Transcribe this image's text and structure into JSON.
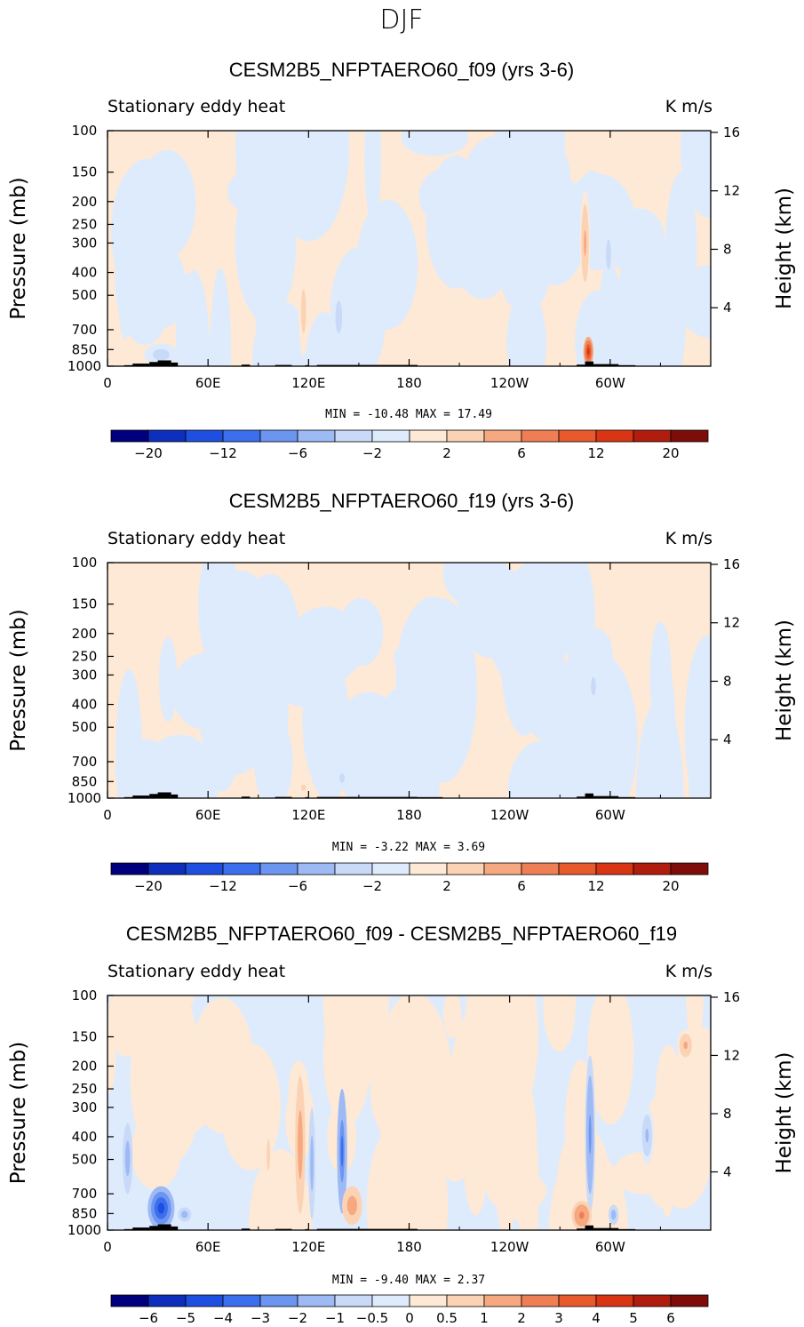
{
  "figure": {
    "season": "DJF",
    "ylabel_left": "Pressure (mb)",
    "ylabel_right": "Height (km)",
    "variable_label": "Stationary eddy heat",
    "units_label": "K m/s"
  },
  "chart_data": [
    {
      "type": "heatmap",
      "title": "CESM2B5_NFPTAERO60_f09 (yrs 3-6)",
      "subtitle_left": "Stationary eddy heat",
      "subtitle_right": "K m/s",
      "xlabel": "",
      "ylabel": "Pressure (mb)",
      "ylabel_right": "Height (km)",
      "x_ticks": [
        "0",
        "60E",
        "120E",
        "180",
        "120W",
        "60W"
      ],
      "x_tick_values": [
        0,
        60,
        120,
        180,
        240,
        300
      ],
      "xlim": [
        0,
        360
      ],
      "y_ticks": [
        "100",
        "150",
        "200",
        "250",
        "300",
        "400",
        "500",
        "700",
        "850",
        "1000"
      ],
      "y_tick_values": [
        100,
        150,
        200,
        250,
        300,
        400,
        500,
        700,
        850,
        1000
      ],
      "ylim": [
        1000,
        100
      ],
      "y_right_ticks": [
        "16",
        "12",
        "8",
        "4"
      ],
      "y_right_tick_values": [
        16,
        12,
        8,
        4
      ],
      "stats_text": "MIN =  -10.48   MAX =   17.49",
      "min": -10.48,
      "max": 17.49,
      "contour_levels": [
        -20,
        -16,
        -12,
        -8,
        -6,
        -4,
        -2,
        0,
        2,
        4,
        6,
        8,
        12,
        16,
        20
      ],
      "colorbar_labels": [
        "-20",
        "-12",
        "-6",
        "-2",
        "2",
        "6",
        "12",
        "20"
      ],
      "colorbar_label_values": [
        -20,
        -12,
        -6,
        -2,
        2,
        6,
        12,
        20
      ],
      "background_mix": "positive-small",
      "features": [
        {
          "lon": 95,
          "p": 500,
          "lon_width": 8,
          "p_span": [
            150,
            1000
          ],
          "value": -1
        },
        {
          "lon": 117,
          "p": 600,
          "lon_width": 3,
          "p_span": [
            380,
            900
          ],
          "value": 3
        },
        {
          "lon": 138,
          "p": 650,
          "lon_width": 4,
          "p_span": [
            450,
            850
          ],
          "value": -3
        },
        {
          "lon": 32,
          "p": 880,
          "lon_width": 10,
          "p_span": [
            800,
            1000
          ],
          "value": -3
        },
        {
          "lon": 285,
          "p": 350,
          "lon_width": 3,
          "p_span": [
            180,
            500
          ],
          "value": 4
        },
        {
          "lon": 287,
          "p": 900,
          "lon_width": 3,
          "p_span": [
            750,
            1000
          ],
          "value": 12
        },
        {
          "lon": 299,
          "p": 350,
          "lon_width": 3,
          "p_span": [
            250,
            450
          ],
          "value": -3
        }
      ]
    },
    {
      "type": "heatmap",
      "title": "CESM2B5_NFPTAERO60_f19 (yrs 3-6)",
      "subtitle_left": "Stationary eddy heat",
      "subtitle_right": "K m/s",
      "xlabel": "",
      "ylabel": "Pressure (mb)",
      "ylabel_right": "Height (km)",
      "x_ticks": [
        "0",
        "60E",
        "120E",
        "180",
        "120W",
        "60W"
      ],
      "x_tick_values": [
        0,
        60,
        120,
        180,
        240,
        300
      ],
      "xlim": [
        0,
        360
      ],
      "y_ticks": [
        "100",
        "150",
        "200",
        "250",
        "300",
        "400",
        "500",
        "700",
        "850",
        "1000"
      ],
      "y_tick_values": [
        100,
        150,
        200,
        250,
        300,
        400,
        500,
        700,
        850,
        1000
      ],
      "ylim": [
        1000,
        100
      ],
      "y_right_ticks": [
        "16",
        "12",
        "8",
        "4"
      ],
      "y_right_tick_values": [
        16,
        12,
        8,
        4
      ],
      "stats_text": "MIN =   -3.22   MAX =    3.69",
      "min": -3.22,
      "max": 3.69,
      "contour_levels": [
        -20,
        -16,
        -12,
        -8,
        -6,
        -4,
        -2,
        0,
        2,
        4,
        6,
        8,
        12,
        16,
        20
      ],
      "colorbar_labels": [
        "-20",
        "-12",
        "-6",
        "-2",
        "2",
        "6",
        "12",
        "20"
      ],
      "colorbar_label_values": [
        -20,
        -12,
        -6,
        -2,
        2,
        6,
        12,
        20
      ],
      "background_mix": "positive-small",
      "features": [
        {
          "lon": 140,
          "p": 820,
          "lon_width": 3,
          "p_span": [
            750,
            900
          ],
          "value": -3
        },
        {
          "lon": 117,
          "p": 900,
          "lon_width": 3,
          "p_span": [
            850,
            960
          ],
          "value": 3
        },
        {
          "lon": 290,
          "p": 330,
          "lon_width": 3,
          "p_span": [
            280,
            400
          ],
          "value": -3
        }
      ]
    },
    {
      "type": "heatmap",
      "title": "CESM2B5_NFPTAERO60_f09 - CESM2B5_NFPTAERO60_f19",
      "subtitle_left": "Stationary eddy heat",
      "subtitle_right": "K m/s",
      "xlabel": "",
      "ylabel": "Pressure (mb)",
      "ylabel_right": "Height (km)",
      "x_ticks": [
        "0",
        "60E",
        "120E",
        "180",
        "120W",
        "60W"
      ],
      "x_tick_values": [
        0,
        60,
        120,
        180,
        240,
        300
      ],
      "xlim": [
        0,
        360
      ],
      "y_ticks": [
        "100",
        "150",
        "200",
        "250",
        "300",
        "400",
        "500",
        "700",
        "850",
        "1000"
      ],
      "y_tick_values": [
        100,
        150,
        200,
        250,
        300,
        400,
        500,
        700,
        850,
        1000
      ],
      "ylim": [
        1000,
        100
      ],
      "y_right_ticks": [
        "16",
        "12",
        "8",
        "4"
      ],
      "y_right_tick_values": [
        16,
        12,
        8,
        4
      ],
      "stats_text": "MIN =   -9.40   MAX =    2.37",
      "min": -9.4,
      "max": 2.37,
      "contour_levels": [
        -6,
        -5,
        -4,
        -3,
        -2,
        -1,
        -0.5,
        0,
        0.5,
        1,
        2,
        3,
        4,
        5,
        6
      ],
      "colorbar_labels": [
        "-6",
        "-5",
        "-4",
        "-3",
        "-2",
        "-1",
        "-0.5",
        "0",
        "0.5",
        "1",
        "2",
        "3",
        "4",
        "5",
        "6"
      ],
      "colorbar_label_values": [
        -6,
        -5,
        -4,
        -3,
        -2,
        -1,
        -0.5,
        0,
        0.5,
        1,
        2,
        3,
        4,
        5,
        6
      ],
      "background_mix": "negative-small",
      "features": [
        {
          "lon": 32,
          "p": 850,
          "lon_width": 8,
          "p_span": [
            650,
            1000
          ],
          "value": -4
        },
        {
          "lon": 46,
          "p": 860,
          "lon_width": 4,
          "p_span": [
            800,
            920
          ],
          "value": -1.5
        },
        {
          "lon": 12,
          "p": 450,
          "lon_width": 3,
          "p_span": [
            350,
            700
          ],
          "value": -1.5
        },
        {
          "lon": 115,
          "p": 500,
          "lon_width": 3,
          "p_span": [
            220,
            850
          ],
          "value": 1.5
        },
        {
          "lon": 122,
          "p": 600,
          "lon_width": 2,
          "p_span": [
            300,
            900
          ],
          "value": -1.5
        },
        {
          "lon": 140,
          "p": 560,
          "lon_width": 3,
          "p_span": [
            250,
            850
          ],
          "value": -3
        },
        {
          "lon": 146,
          "p": 800,
          "lon_width": 6,
          "p_span": [
            650,
            950
          ],
          "value": 1.5
        },
        {
          "lon": 288,
          "p": 450,
          "lon_width": 3,
          "p_span": [
            180,
            850
          ],
          "value": -2
        },
        {
          "lon": 283,
          "p": 850,
          "lon_width": 6,
          "p_span": [
            750,
            1000
          ],
          "value": 2
        },
        {
          "lon": 302,
          "p": 850,
          "lon_width": 3,
          "p_span": [
            780,
            950
          ],
          "value": -1.5
        },
        {
          "lon": 322,
          "p": 400,
          "lon_width": 4,
          "p_span": [
            300,
            520
          ],
          "value": -1.2
        },
        {
          "lon": 345,
          "p": 160,
          "lon_width": 5,
          "p_span": [
            140,
            190
          ],
          "value": 1.2
        },
        {
          "lon": 96,
          "p": 500,
          "lon_width": 2,
          "p_span": [
            350,
            650
          ],
          "value": 0.8
        }
      ]
    }
  ]
}
